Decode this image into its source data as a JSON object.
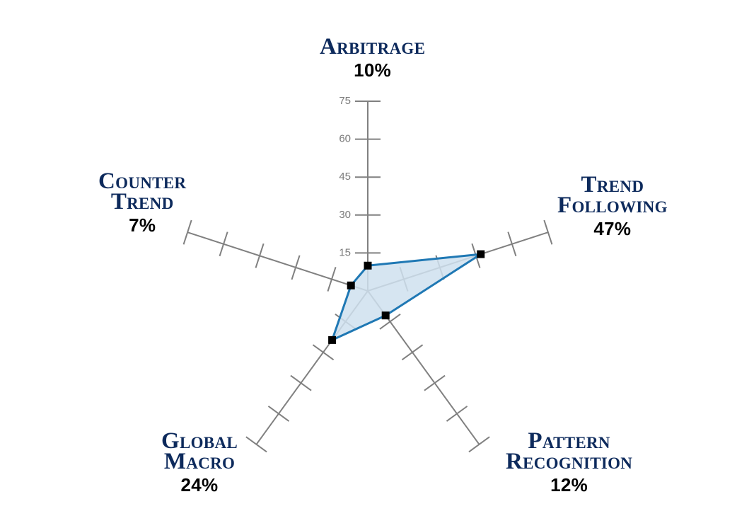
{
  "chart_data": {
    "type": "radar",
    "categories": [
      "Arbitrage",
      "Trend Following",
      "Pattern Recognition",
      "Global Macro",
      "Counter Trend"
    ],
    "category_lines": [
      [
        "Arbitrage"
      ],
      [
        "Trend",
        "Following"
      ],
      [
        "Pattern",
        "Recognition"
      ],
      [
        "Global",
        "Macro"
      ],
      [
        "Counter",
        "Trend"
      ]
    ],
    "percent_labels": [
      "10%",
      "47%",
      "12%",
      "24%",
      "7%"
    ],
    "values": [
      10,
      47,
      12,
      24,
      7
    ],
    "r_ticks": [
      15,
      30,
      45,
      60,
      75
    ],
    "r_range": [
      0,
      75
    ],
    "grid": false,
    "colors": {
      "series_line": "#1f78b4",
      "series_fill": "#cfe1ef",
      "marker": "#000000",
      "axis": "#808080",
      "label": "#0d2a5c"
    }
  }
}
